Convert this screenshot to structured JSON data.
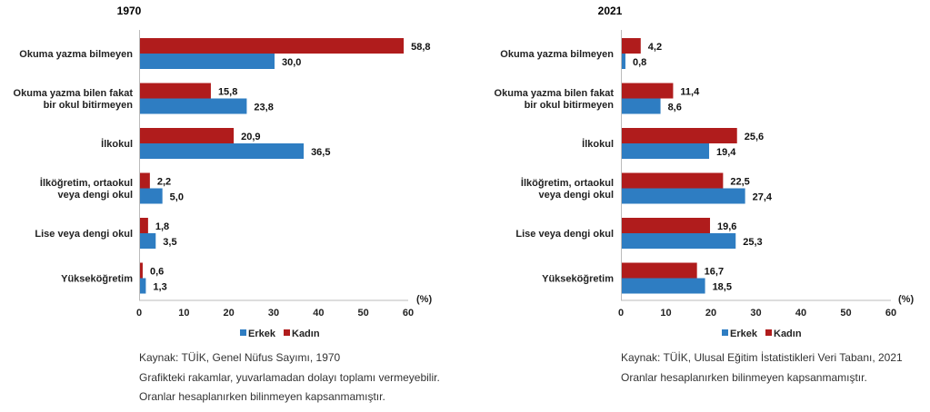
{
  "chart_data": [
    {
      "type": "bar",
      "orientation": "horizontal",
      "title": "1970",
      "categories": [
        [
          "Okuma yazma bilmeyen"
        ],
        [
          "Okuma yazma bilen fakat",
          "bir okul bitirmeyen"
        ],
        [
          "İlkokul"
        ],
        [
          "İlköğretim, ortaokul",
          "veya dengi okul"
        ],
        [
          "Lise veya dengi okul"
        ],
        [
          "Yükseköğretim"
        ]
      ],
      "series": [
        {
          "name": "Kadın",
          "color": "#B01C1C",
          "values": [
            58.8,
            15.8,
            20.9,
            2.2,
            1.8,
            0.6
          ],
          "labels": [
            "58,8",
            "15,8",
            "20,9",
            "2,2",
            "1,8",
            "0,6"
          ]
        },
        {
          "name": "Erkek",
          "color": "#2E7DC2",
          "values": [
            30.0,
            23.8,
            36.5,
            5.0,
            3.5,
            1.3
          ],
          "labels": [
            "30,0",
            "23,8",
            "36,5",
            "5,0",
            "3,5",
            "1,3"
          ]
        }
      ],
      "xlim": [
        0,
        60
      ],
      "xticks": [
        "0",
        "10",
        "20",
        "30",
        "40",
        "50",
        "60"
      ],
      "unit_label": "(%)",
      "legend": [
        "Erkek",
        "Kadın"
      ],
      "legend_placement": "bottom",
      "notes": [
        "Kaynak: TÜİK, Genel Nüfus Sayımı, 1970",
        "Grafikteki rakamlar, yuvarlamadan dolayı toplamı vermeyebilir.",
        "Oranlar hesaplanırken bilinmeyen kapsanmamıştır."
      ]
    },
    {
      "type": "bar",
      "orientation": "horizontal",
      "title": "2021",
      "categories": [
        [
          "Okuma yazma bilmeyen"
        ],
        [
          "Okuma yazma bilen fakat",
          "bir okul bitirmeyen"
        ],
        [
          "İlkokul"
        ],
        [
          "İlköğretim, ortaokul",
          "veya dengi okul"
        ],
        [
          "Lise veya dengi okul"
        ],
        [
          "Yükseköğretim"
        ]
      ],
      "series": [
        {
          "name": "Kadın",
          "color": "#B01C1C",
          "values": [
            4.2,
            11.4,
            25.6,
            22.5,
            19.6,
            16.7
          ],
          "labels": [
            "4,2",
            "11,4",
            "25,6",
            "22,5",
            "19,6",
            "16,7"
          ]
        },
        {
          "name": "Erkek",
          "color": "#2E7DC2",
          "values": [
            0.8,
            8.6,
            19.4,
            27.4,
            25.3,
            18.5
          ],
          "labels": [
            "0,8",
            "8,6",
            "19,4",
            "27,4",
            "25,3",
            "18,5"
          ]
        }
      ],
      "xlim": [
        0,
        60
      ],
      "xticks": [
        "0",
        "10",
        "20",
        "30",
        "40",
        "50",
        "60"
      ],
      "unit_label": "(%)",
      "legend": [
        "Erkek",
        "Kadın"
      ],
      "legend_placement": "bottom",
      "notes": [
        "Kaynak: TÜİK, Ulusal Eğitim İstatistikleri Veri Tabanı, 2021",
        "Oranlar hesaplanırken bilinmeyen kapsanmamıştır."
      ]
    }
  ]
}
